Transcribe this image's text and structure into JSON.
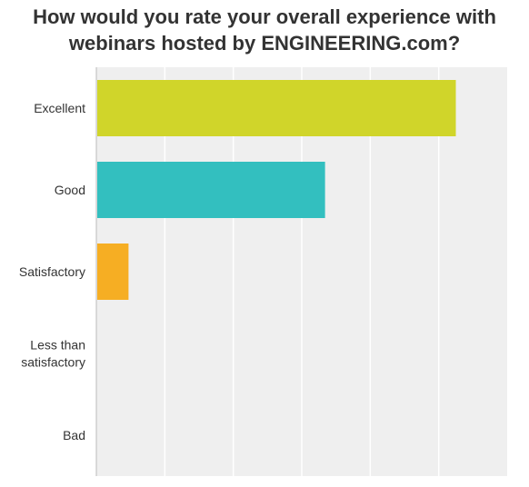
{
  "chart_data": {
    "type": "bar",
    "orientation": "horizontal",
    "title_lines": [
      "How would you rate your overall experience with",
      "webinars hosted by ENGINEERING.com?"
    ],
    "categories": [
      {
        "label_lines": [
          "Excellent"
        ]
      },
      {
        "label_lines": [
          "Good"
        ]
      },
      {
        "label_lines": [
          "Satisfactory"
        ]
      },
      {
        "label_lines": [
          "Less than",
          "satisfactory"
        ]
      },
      {
        "label_lines": [
          "Bad"
        ]
      }
    ],
    "values": [
      0.525,
      0.334,
      0.047,
      0.0,
      0.0
    ],
    "colors": [
      "#d0d52a",
      "#33bfbf",
      "#f6ae23",
      "#999999",
      "#999999"
    ],
    "xlim": [
      0,
      0.6
    ],
    "x_grid_step": 0.1,
    "grid": true,
    "plot_background": "#efefef",
    "grid_color": "#ffffff"
  }
}
